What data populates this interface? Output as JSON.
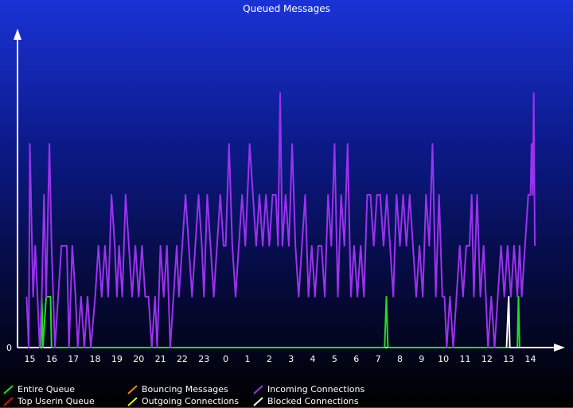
{
  "chart_data": {
    "type": "line",
    "title": "Queued Messages",
    "xlabel": "",
    "ylabel": "",
    "y_tick_labels": [
      "0"
    ],
    "x_tick_labels": [
      "15",
      "16",
      "17",
      "18",
      "19",
      "20",
      "21",
      "22",
      "23",
      "0",
      "1",
      "2",
      "3",
      "4",
      "5",
      "6",
      "7",
      "8",
      "9",
      "10",
      "11",
      "12",
      "13",
      "14"
    ],
    "x_range": [
      14.7,
      38.3
    ],
    "ylim": [
      0,
      6
    ],
    "grid": false,
    "legend_position": "bottom",
    "series": [
      {
        "name": "Entire Queue",
        "color": "#22dd22",
        "values": [
          [
            15.5,
            0
          ],
          [
            15.55,
            1
          ],
          [
            15.6,
            0
          ],
          [
            15.75,
            1
          ],
          [
            15.95,
            1
          ],
          [
            16.0,
            0
          ],
          [
            22.0,
            0
          ],
          [
            31.3,
            0
          ],
          [
            31.38,
            1
          ],
          [
            31.45,
            0
          ],
          [
            37.4,
            0
          ],
          [
            37.45,
            1
          ],
          [
            37.5,
            0
          ],
          [
            38.0,
            0
          ]
        ]
      },
      {
        "name": "Top Userin Queue",
        "color": "#dd1111",
        "values": []
      },
      {
        "name": "Bouncing Messages",
        "color": "#ee8800",
        "values": []
      },
      {
        "name": "Outgoing Connections",
        "color": "#eeee22",
        "values": []
      },
      {
        "name": "Incoming Connections",
        "color": "#9933ee",
        "values": [
          [
            14.85,
            1
          ],
          [
            14.95,
            0
          ],
          [
            15.0,
            4
          ],
          [
            15.15,
            1
          ],
          [
            15.25,
            2
          ],
          [
            15.35,
            1
          ],
          [
            15.45,
            0
          ],
          [
            15.55,
            1
          ],
          [
            15.65,
            3
          ],
          [
            15.75,
            1
          ],
          [
            15.9,
            4
          ],
          [
            16.0,
            2
          ],
          [
            16.15,
            0
          ],
          [
            16.3,
            1
          ],
          [
            16.45,
            2
          ],
          [
            16.7,
            2
          ],
          [
            16.8,
            0
          ],
          [
            16.95,
            2
          ],
          [
            17.1,
            1
          ],
          [
            17.2,
            0
          ],
          [
            17.35,
            1
          ],
          [
            17.5,
            0
          ],
          [
            17.65,
            1
          ],
          [
            17.8,
            0
          ],
          [
            18.0,
            1
          ],
          [
            18.15,
            2
          ],
          [
            18.3,
            1
          ],
          [
            18.45,
            2
          ],
          [
            18.6,
            1
          ],
          [
            18.75,
            3
          ],
          [
            18.9,
            2
          ],
          [
            19.0,
            1
          ],
          [
            19.1,
            2
          ],
          [
            19.25,
            1
          ],
          [
            19.4,
            3
          ],
          [
            19.55,
            2
          ],
          [
            19.7,
            1
          ],
          [
            19.85,
            2
          ],
          [
            20.0,
            1
          ],
          [
            20.15,
            2
          ],
          [
            20.3,
            1
          ],
          [
            20.45,
            1
          ],
          [
            20.6,
            0
          ],
          [
            20.75,
            1
          ],
          [
            20.85,
            0
          ],
          [
            21.0,
            2
          ],
          [
            21.15,
            1
          ],
          [
            21.3,
            2
          ],
          [
            21.45,
            0
          ],
          [
            21.6,
            1
          ],
          [
            21.75,
            2
          ],
          [
            21.85,
            1
          ],
          [
            22.0,
            2
          ],
          [
            22.15,
            3
          ],
          [
            22.3,
            2
          ],
          [
            22.45,
            1
          ],
          [
            22.6,
            2
          ],
          [
            22.75,
            3
          ],
          [
            22.9,
            2
          ],
          [
            23.0,
            1
          ],
          [
            23.15,
            3
          ],
          [
            23.3,
            2
          ],
          [
            23.45,
            1
          ],
          [
            23.6,
            2
          ],
          [
            23.75,
            3
          ],
          [
            23.9,
            2
          ],
          [
            24.0,
            2
          ],
          [
            24.15,
            4
          ],
          [
            24.3,
            2
          ],
          [
            24.45,
            1
          ],
          [
            24.6,
            2
          ],
          [
            24.75,
            3
          ],
          [
            24.9,
            2
          ],
          [
            25.1,
            4
          ],
          [
            25.25,
            3
          ],
          [
            25.4,
            2
          ],
          [
            25.55,
            3
          ],
          [
            25.7,
            2
          ],
          [
            25.85,
            3
          ],
          [
            26.0,
            2
          ],
          [
            26.15,
            3
          ],
          [
            26.3,
            3
          ],
          [
            26.4,
            2
          ],
          [
            26.5,
            5
          ],
          [
            26.6,
            2
          ],
          [
            26.75,
            3
          ],
          [
            26.9,
            2
          ],
          [
            27.05,
            4
          ],
          [
            27.2,
            2
          ],
          [
            27.35,
            1
          ],
          [
            27.5,
            2
          ],
          [
            27.65,
            3
          ],
          [
            27.8,
            1
          ],
          [
            27.95,
            2
          ],
          [
            28.1,
            1
          ],
          [
            28.25,
            2
          ],
          [
            28.4,
            2
          ],
          [
            28.55,
            1
          ],
          [
            28.7,
            3
          ],
          [
            28.85,
            2
          ],
          [
            29.0,
            4
          ],
          [
            29.15,
            1
          ],
          [
            29.3,
            3
          ],
          [
            29.45,
            2
          ],
          [
            29.6,
            4
          ],
          [
            29.75,
            1
          ],
          [
            29.9,
            2
          ],
          [
            30.05,
            1
          ],
          [
            30.2,
            2
          ],
          [
            30.35,
            1
          ],
          [
            30.5,
            3
          ],
          [
            30.65,
            3
          ],
          [
            30.8,
            2
          ],
          [
            30.95,
            3
          ],
          [
            31.1,
            3
          ],
          [
            31.25,
            2
          ],
          [
            31.4,
            3
          ],
          [
            31.55,
            2
          ],
          [
            31.7,
            1
          ],
          [
            31.85,
            3
          ],
          [
            32.0,
            2
          ],
          [
            32.15,
            3
          ],
          [
            32.3,
            2
          ],
          [
            32.45,
            3
          ],
          [
            32.6,
            2
          ],
          [
            32.75,
            1
          ],
          [
            32.9,
            2
          ],
          [
            33.05,
            1
          ],
          [
            33.2,
            3
          ],
          [
            33.35,
            2
          ],
          [
            33.5,
            4
          ],
          [
            33.65,
            1
          ],
          [
            33.8,
            3
          ],
          [
            33.95,
            1
          ],
          [
            34.05,
            1
          ],
          [
            34.15,
            0
          ],
          [
            34.3,
            1
          ],
          [
            34.45,
            0
          ],
          [
            34.6,
            1
          ],
          [
            34.75,
            2
          ],
          [
            34.9,
            1
          ],
          [
            35.05,
            2
          ],
          [
            35.2,
            2
          ],
          [
            35.3,
            3
          ],
          [
            35.4,
            1
          ],
          [
            35.55,
            3
          ],
          [
            35.7,
            1
          ],
          [
            35.85,
            2
          ],
          [
            35.95,
            1
          ],
          [
            36.05,
            0
          ],
          [
            36.2,
            1
          ],
          [
            36.35,
            0
          ],
          [
            36.5,
            1
          ],
          [
            36.65,
            2
          ],
          [
            36.8,
            1
          ],
          [
            36.95,
            2
          ],
          [
            37.1,
            1
          ],
          [
            37.25,
            2
          ],
          [
            37.4,
            1
          ],
          [
            37.5,
            2
          ],
          [
            37.6,
            1
          ],
          [
            37.75,
            2
          ],
          [
            37.9,
            3
          ],
          [
            38.0,
            3
          ],
          [
            38.05,
            4
          ],
          [
            38.1,
            3
          ],
          [
            38.15,
            5
          ],
          [
            38.2,
            2
          ]
        ]
      },
      {
        "name": "Blocked Connections",
        "color": "#ffffff",
        "values": [
          [
            36.9,
            0
          ],
          [
            37.0,
            1
          ],
          [
            37.05,
            0
          ],
          [
            38.0,
            0
          ]
        ]
      }
    ]
  }
}
